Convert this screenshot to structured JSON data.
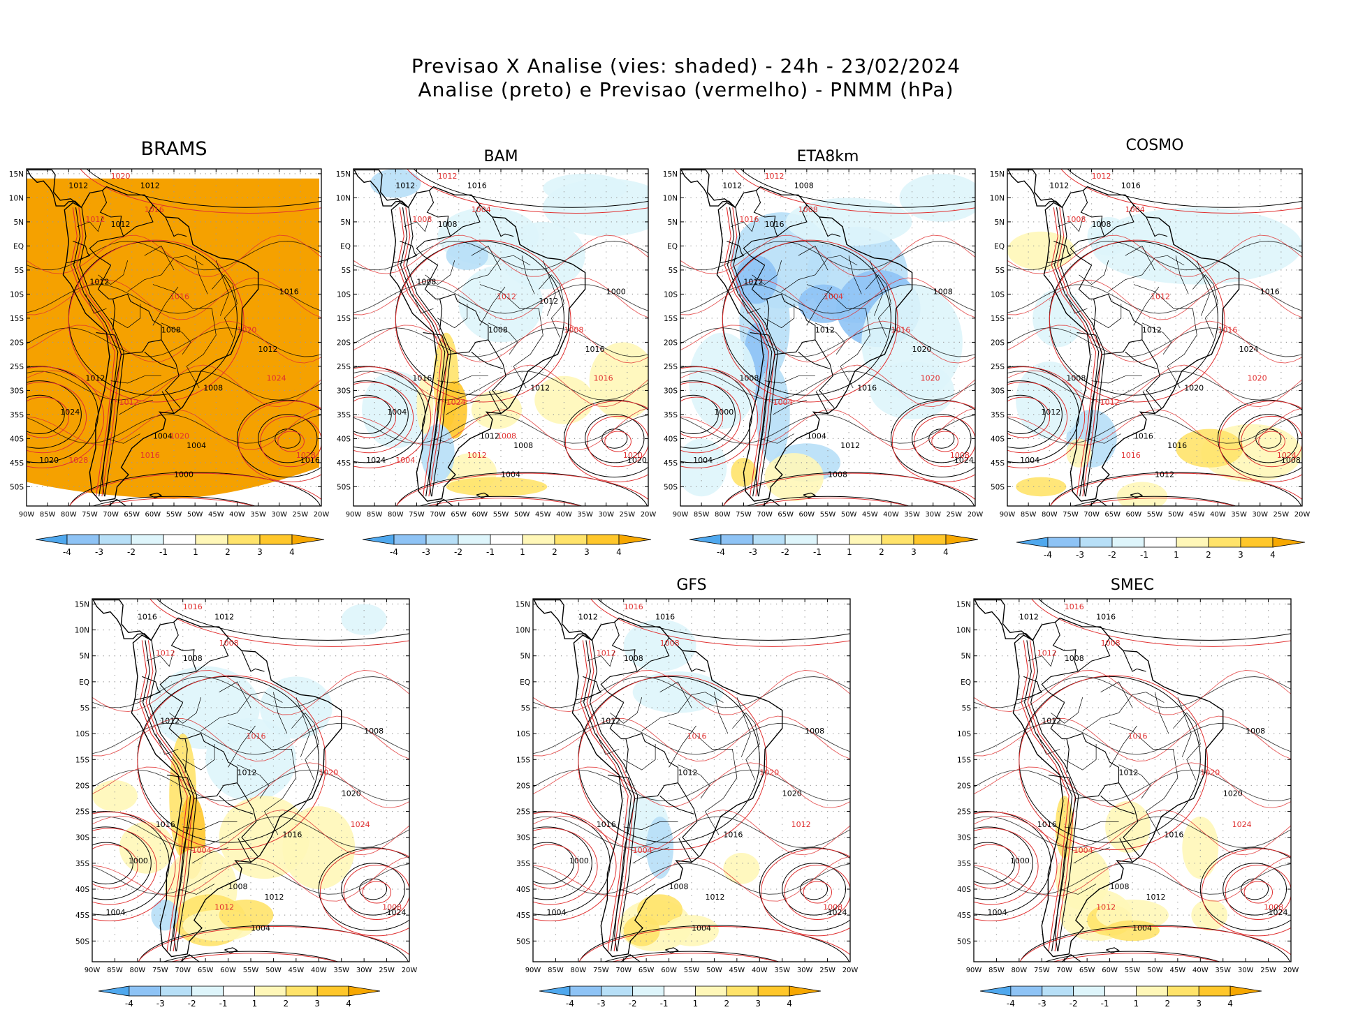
{
  "header": {
    "line1": "Previsao X Analise (vies: shaded) - 24h - 23/02/2024",
    "line2": "Analise (preto) e Previsao (vermelho) - PNMM (hPa)"
  },
  "axes": {
    "lat_labels": [
      "15N",
      "10N",
      "5N",
      "EQ",
      "5S",
      "10S",
      "15S",
      "20S",
      "25S",
      "30S",
      "35S",
      "40S",
      "45S",
      "50S"
    ],
    "lon_labels": [
      "90W",
      "85W",
      "80W",
      "75W",
      "70W",
      "65W",
      "60W",
      "55W",
      "50W",
      "45W",
      "40W",
      "35W",
      "30W",
      "25W",
      "20W"
    ]
  },
  "colorbar": {
    "ticks": [
      "-4",
      "-3",
      "-2",
      "-1",
      "1",
      "2",
      "3",
      "4"
    ],
    "colors": [
      "#4fa8ee",
      "#8ec3f5",
      "#b7dff7",
      "#def5fb",
      "#ffffff",
      "#fff7b8",
      "#ffe36a",
      "#ffc72b",
      "#f7a800"
    ]
  },
  "colors": {
    "analysis": "#000000",
    "forecast": "#e03030",
    "brams_fill": "#f5a100"
  },
  "panels": [
    {
      "id": "brams",
      "title": "BRAMS",
      "labels_black": [
        "1012",
        "1012",
        "1012",
        "1008",
        "1012",
        "1004",
        "1000",
        "1004",
        "1008",
        "1012",
        "1016",
        "1020",
        "1024",
        "1016",
        "1012"
      ],
      "labels_red": [
        "1020",
        "1012",
        "1016",
        "1016",
        "1020",
        "1024",
        "1028",
        "1012",
        "1016",
        "1020",
        "1028"
      ]
    },
    {
      "id": "bam",
      "title": "BAM",
      "labels_black": [
        "1012",
        "1016",
        "1008",
        "1008",
        "1016",
        "1012",
        "1004",
        "1008",
        "1012",
        "1016",
        "1020",
        "1024",
        "1004",
        "1000",
        "1008",
        "1012"
      ],
      "labels_red": [
        "1012",
        "1008",
        "1004",
        "1012",
        "1008",
        "1016",
        "1020",
        "1024",
        "1012",
        "1008",
        "1004"
      ]
    },
    {
      "id": "eta8km",
      "title": "ETA8km",
      "labels_black": [
        "1012",
        "1008",
        "1016",
        "1012",
        "1008",
        "1004",
        "1008",
        "1012",
        "1016",
        "1020",
        "1024",
        "1004",
        "1000",
        "1008",
        "1012"
      ],
      "labels_red": [
        "1012",
        "1016",
        "1008",
        "1004",
        "1016",
        "1020",
        "1008",
        "1004"
      ]
    },
    {
      "id": "cosmo",
      "title": "COSMO",
      "labels_black": [
        "1012",
        "1016",
        "1008",
        "1012",
        "1008",
        "1016",
        "1012",
        "1016",
        "1020",
        "1024",
        "1008",
        "1004",
        "1012",
        "1016"
      ],
      "labels_red": [
        "1012",
        "1008",
        "1004",
        "1012",
        "1016",
        "1020",
        "1024",
        "1012",
        "1016"
      ]
    },
    {
      "id": "panel5",
      "title": "",
      "labels_black": [
        "1016",
        "1012",
        "1008",
        "1012",
        "1016",
        "1008",
        "1004",
        "1012",
        "1016",
        "1020",
        "1024",
        "1004",
        "1000",
        "1008",
        "1012"
      ],
      "labels_red": [
        "1016",
        "1012",
        "1008",
        "1016",
        "1020",
        "1024",
        "1008",
        "1004",
        "1012"
      ]
    },
    {
      "id": "gfs",
      "title": "GFS",
      "labels_black": [
        "1012",
        "1016",
        "1008",
        "1012",
        "1016",
        "1008",
        "1004",
        "1012",
        "1016",
        "1020",
        "1024",
        "1004",
        "1000",
        "1008",
        "1012"
      ],
      "labels_red": [
        "1016",
        "1012",
        "1008",
        "1016",
        "1020",
        "1012",
        "1008",
        "1004"
      ]
    },
    {
      "id": "smec",
      "title": "SMEC",
      "labels_black": [
        "1012",
        "1016",
        "1008",
        "1012",
        "1016",
        "1008",
        "1004",
        "1012",
        "1016",
        "1020",
        "1024",
        "1004",
        "1000",
        "1008",
        "1012"
      ],
      "labels_red": [
        "1016",
        "1012",
        "1008",
        "1016",
        "1020",
        "1024",
        "1008",
        "1004",
        "1012"
      ]
    }
  ]
}
